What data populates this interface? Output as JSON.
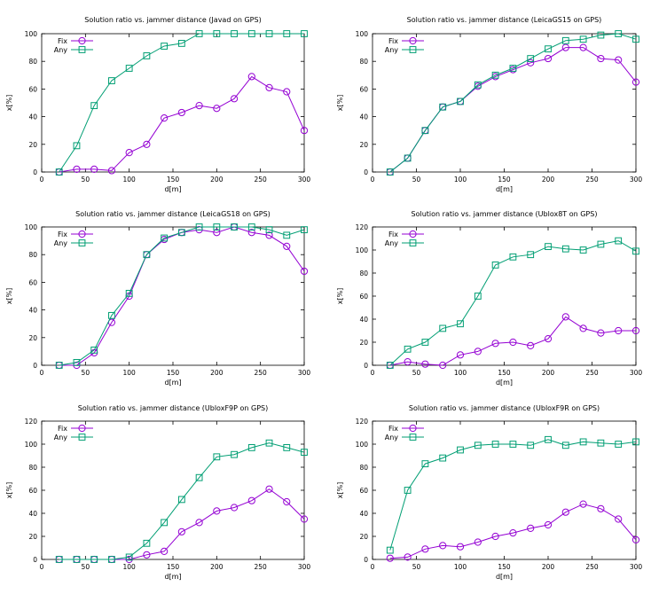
{
  "colors": {
    "fix": "#9400d3",
    "any": "#009e73",
    "axis": "#000000"
  },
  "chart_data": [
    {
      "type": "line",
      "title": "Solution ratio vs. jammer distance (Javad on GPS)",
      "xlabel": "d[m]",
      "ylabel": "x[%]",
      "xlim": [
        0,
        300
      ],
      "ylim": [
        0,
        100
      ],
      "xticks": [
        0,
        50,
        100,
        150,
        200,
        250,
        300
      ],
      "yticks": [
        0,
        20,
        40,
        60,
        80,
        100
      ],
      "x": [
        20,
        40,
        60,
        80,
        100,
        120,
        140,
        160,
        180,
        200,
        220,
        240,
        260,
        280,
        300
      ],
      "series": [
        {
          "name": "Fix",
          "values": [
            0,
            2,
            2,
            1,
            14,
            20,
            39,
            43,
            48,
            46,
            53,
            69,
            61,
            58,
            30
          ]
        },
        {
          "name": "Any",
          "values": [
            0,
            19,
            48,
            66,
            75,
            84,
            91,
            93,
            100,
            100,
            100,
            100,
            100,
            100,
            100
          ]
        }
      ]
    },
    {
      "type": "line",
      "title": "Solution ratio vs. jammer distance (LeicaGS15 on GPS)",
      "xlabel": "d[m]",
      "ylabel": "x[%]",
      "xlim": [
        0,
        300
      ],
      "ylim": [
        0,
        100
      ],
      "xticks": [
        0,
        50,
        100,
        150,
        200,
        250,
        300
      ],
      "yticks": [
        0,
        20,
        40,
        60,
        80,
        100
      ],
      "x": [
        20,
        40,
        60,
        80,
        100,
        120,
        140,
        160,
        180,
        200,
        220,
        240,
        260,
        280,
        300
      ],
      "series": [
        {
          "name": "Fix",
          "values": [
            0,
            10,
            30,
            47,
            51,
            62,
            69,
            74,
            79,
            82,
            90,
            90,
            82,
            81,
            65
          ]
        },
        {
          "name": "Any",
          "values": [
            0,
            10,
            30,
            47,
            51,
            63,
            70,
            75,
            82,
            89,
            95,
            96,
            99,
            100,
            96
          ]
        }
      ]
    },
    {
      "type": "line",
      "title": "Solution ratio vs. jammer distance (LeicaGS18 on GPS)",
      "xlabel": "d[m]",
      "ylabel": "x[%]",
      "xlim": [
        0,
        300
      ],
      "ylim": [
        0,
        100
      ],
      "xticks": [
        0,
        50,
        100,
        150,
        200,
        250,
        300
      ],
      "yticks": [
        0,
        20,
        40,
        60,
        80,
        100
      ],
      "x": [
        20,
        40,
        60,
        80,
        100,
        120,
        140,
        160,
        180,
        200,
        220,
        240,
        260,
        280,
        300
      ],
      "series": [
        {
          "name": "Fix",
          "values": [
            0,
            0,
            9,
            31,
            50,
            80,
            91,
            96,
            98,
            96,
            100,
            96,
            94,
            86,
            68
          ]
        },
        {
          "name": "Any",
          "values": [
            0,
            2,
            11,
            36,
            52,
            80,
            92,
            96,
            100,
            100,
            100,
            100,
            98,
            94,
            98
          ]
        }
      ]
    },
    {
      "type": "line",
      "title": "Solution ratio vs. jammer distance (Ublox8T on GPS)",
      "xlabel": "d[m]",
      "ylabel": "x[%]",
      "xlim": [
        0,
        300
      ],
      "ylim": [
        0,
        120
      ],
      "xticks": [
        0,
        50,
        100,
        150,
        200,
        250,
        300
      ],
      "yticks": [
        0,
        20,
        40,
        60,
        80,
        100,
        120
      ],
      "x": [
        20,
        40,
        60,
        80,
        100,
        120,
        140,
        160,
        180,
        200,
        220,
        240,
        260,
        280,
        300
      ],
      "series": [
        {
          "name": "Fix",
          "values": [
            0,
            3,
            1,
            0,
            9,
            12,
            19,
            20,
            17,
            23,
            42,
            32,
            28,
            30,
            30
          ]
        },
        {
          "name": "Any",
          "values": [
            0,
            14,
            20,
            32,
            36,
            60,
            87,
            94,
            96,
            103,
            101,
            100,
            105,
            108,
            99
          ]
        }
      ]
    },
    {
      "type": "line",
      "title": "Solution ratio vs. jammer distance (UbloxF9P on GPS)",
      "xlabel": "d[m]",
      "ylabel": "x[%]",
      "xlim": [
        0,
        300
      ],
      "ylim": [
        0,
        120
      ],
      "xticks": [
        0,
        50,
        100,
        150,
        200,
        250,
        300
      ],
      "yticks": [
        0,
        20,
        40,
        60,
        80,
        100,
        120
      ],
      "x": [
        20,
        40,
        60,
        80,
        100,
        120,
        140,
        160,
        180,
        200,
        220,
        240,
        260,
        280,
        300
      ],
      "series": [
        {
          "name": "Fix",
          "values": [
            0,
            0,
            0,
            0,
            0,
            4,
            7,
            24,
            32,
            42,
            45,
            51,
            61,
            50,
            35
          ]
        },
        {
          "name": "Any",
          "values": [
            0,
            0,
            0,
            0,
            2,
            14,
            32,
            52,
            71,
            89,
            91,
            97,
            101,
            97,
            93
          ]
        }
      ]
    },
    {
      "type": "line",
      "title": "Solution ratio vs. jammer distance (UbloxF9R on GPS)",
      "xlabel": "d[m]",
      "ylabel": "x[%]",
      "xlim": [
        0,
        300
      ],
      "ylim": [
        0,
        120
      ],
      "xticks": [
        0,
        50,
        100,
        150,
        200,
        250,
        300
      ],
      "yticks": [
        0,
        20,
        40,
        60,
        80,
        100,
        120
      ],
      "x": [
        20,
        40,
        60,
        80,
        100,
        120,
        140,
        160,
        180,
        200,
        220,
        240,
        260,
        280,
        300
      ],
      "series": [
        {
          "name": "Fix",
          "values": [
            1,
            2,
            9,
            12,
            11,
            15,
            20,
            23,
            27,
            30,
            41,
            48,
            44,
            35,
            17
          ]
        },
        {
          "name": "Any",
          "values": [
            8,
            60,
            83,
            88,
            95,
            99,
            100,
            100,
            99,
            104,
            99,
            102,
            101,
            100,
            102
          ]
        }
      ]
    }
  ]
}
